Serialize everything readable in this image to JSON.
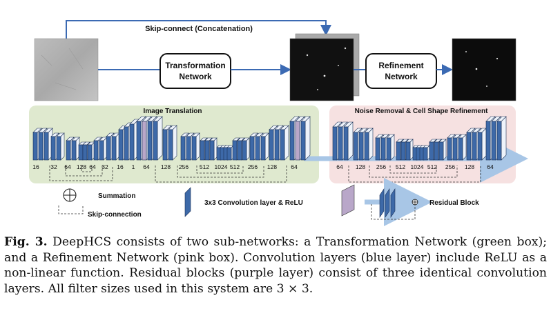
{
  "figure": {
    "skip_connect_label": "Skip-connect (Concatenation)",
    "transformation_network_label": [
      "Transformation",
      "Network"
    ],
    "refinement_network_label": [
      "Refinement",
      "Network"
    ],
    "image_translation_title": "Image Translation",
    "noise_removal_title": "Noise Removal & Cell Shape Refinement",
    "translation_channels": [
      "16",
      "32",
      "64",
      "128",
      "64",
      "32",
      "16",
      "1",
      "64",
      "128",
      "256",
      "512",
      "1024",
      "512",
      "256",
      "128",
      "64"
    ],
    "refinement_channels": [
      "64",
      "128",
      "256",
      "512",
      "1024",
      "512",
      "256",
      "128",
      "64"
    ],
    "legend": {
      "summation": "Summation",
      "skip_connection": "Skip-connection",
      "conv_layer": "3x3 Convolution layer & ReLU",
      "residual_block": "Residual Block"
    },
    "colors": {
      "green_box": "#dfe9cf",
      "pink_box": "#f6e1e1",
      "conv_blue": "#3d69a8",
      "residual_purple": "#b9a7c9",
      "arrow_blue": "#3b6ab3"
    }
  },
  "caption": {
    "label": "Fig. 3.",
    "text": "DeepHCS consists of two sub-networks: a Transformation Network (green box); and a Refinement Network (pink box). Convolution layers (blue layer) include ReLU as a non-linear function. Residual blocks (purple layer) consist of three identical convolution layers. All filter sizes used in this system are 3 × 3."
  }
}
